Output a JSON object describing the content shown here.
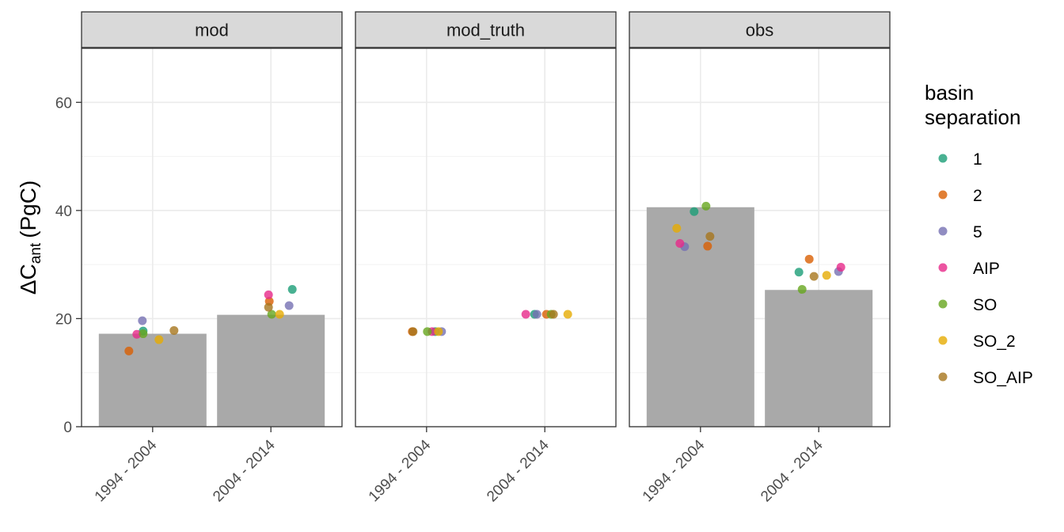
{
  "chart_data": {
    "type": "bar",
    "facets": [
      "mod",
      "mod_truth",
      "obs"
    ],
    "categories": [
      "1994 - 2004",
      "2004 - 2014"
    ],
    "ylabel": {
      "symbol": "ΔC",
      "subscript": "ant",
      "unit": "(PgC)"
    },
    "ylim": [
      0,
      70
    ],
    "yticks": [
      "0",
      "20",
      "40",
      "60"
    ],
    "bar_color": "#a9a9a9",
    "bars": {
      "mod": [
        17.2,
        20.7
      ],
      "mod_truth": [
        0,
        0
      ],
      "obs": [
        40.6,
        25.3
      ]
    },
    "legend": {
      "title": [
        "basin",
        "separation"
      ],
      "entries": [
        {
          "label": "1",
          "color": "#1b9e77"
        },
        {
          "label": "2",
          "color": "#d95f02"
        },
        {
          "label": "5",
          "color": "#7570b3"
        },
        {
          "label": "AIP",
          "color": "#e7298a"
        },
        {
          "label": "SO",
          "color": "#66a61e"
        },
        {
          "label": "SO_2",
          "color": "#e6ab02"
        },
        {
          "label": "SO_AIP",
          "color": "#a6761d"
        }
      ]
    },
    "points": [
      {
        "facet": "mod",
        "period": "1994 - 2004",
        "group": "1",
        "value": 17.7
      },
      {
        "facet": "mod",
        "period": "1994 - 2004",
        "group": "2",
        "value": 14.0
      },
      {
        "facet": "mod",
        "period": "1994 - 2004",
        "group": "5",
        "value": 19.6
      },
      {
        "facet": "mod",
        "period": "1994 - 2004",
        "group": "AIP",
        "value": 17.1
      },
      {
        "facet": "mod",
        "period": "1994 - 2004",
        "group": "SO",
        "value": 17.2
      },
      {
        "facet": "mod",
        "period": "1994 - 2004",
        "group": "SO_2",
        "value": 16.1
      },
      {
        "facet": "mod",
        "period": "1994 - 2004",
        "group": "SO_AIP",
        "value": 17.8
      },
      {
        "facet": "mod",
        "period": "2004 - 2014",
        "group": "1",
        "value": 25.4
      },
      {
        "facet": "mod",
        "period": "2004 - 2014",
        "group": "2",
        "value": 23.2
      },
      {
        "facet": "mod",
        "period": "2004 - 2014",
        "group": "5",
        "value": 22.4
      },
      {
        "facet": "mod",
        "period": "2004 - 2014",
        "group": "AIP",
        "value": 24.4
      },
      {
        "facet": "mod",
        "period": "2004 - 2014",
        "group": "SO",
        "value": 20.8
      },
      {
        "facet": "mod",
        "period": "2004 - 2014",
        "group": "SO_2",
        "value": 20.8
      },
      {
        "facet": "mod",
        "period": "2004 - 2014",
        "group": "SO_AIP",
        "value": 22.1
      },
      {
        "facet": "mod_truth",
        "period": "1994 - 2004",
        "group": "1",
        "value": 17.6
      },
      {
        "facet": "mod_truth",
        "period": "1994 - 2004",
        "group": "2",
        "value": 17.6
      },
      {
        "facet": "mod_truth",
        "period": "1994 - 2004",
        "group": "5",
        "value": 17.6
      },
      {
        "facet": "mod_truth",
        "period": "1994 - 2004",
        "group": "AIP",
        "value": 17.6
      },
      {
        "facet": "mod_truth",
        "period": "1994 - 2004",
        "group": "SO",
        "value": 17.6
      },
      {
        "facet": "mod_truth",
        "period": "1994 - 2004",
        "group": "SO_2",
        "value": 17.6
      },
      {
        "facet": "mod_truth",
        "period": "1994 - 2004",
        "group": "SO_AIP",
        "value": 17.6
      },
      {
        "facet": "mod_truth",
        "period": "2004 - 2014",
        "group": "1",
        "value": 20.8
      },
      {
        "facet": "mod_truth",
        "period": "2004 - 2014",
        "group": "2",
        "value": 20.8
      },
      {
        "facet": "mod_truth",
        "period": "2004 - 2014",
        "group": "5",
        "value": 20.8
      },
      {
        "facet": "mod_truth",
        "period": "2004 - 2014",
        "group": "AIP",
        "value": 20.8
      },
      {
        "facet": "mod_truth",
        "period": "2004 - 2014",
        "group": "SO",
        "value": 20.8
      },
      {
        "facet": "mod_truth",
        "period": "2004 - 2014",
        "group": "SO_2",
        "value": 20.8
      },
      {
        "facet": "mod_truth",
        "period": "2004 - 2014",
        "group": "SO_AIP",
        "value": 20.8
      },
      {
        "facet": "obs",
        "period": "1994 - 2004",
        "group": "1",
        "value": 39.8
      },
      {
        "facet": "obs",
        "period": "1994 - 2004",
        "group": "2",
        "value": 33.4
      },
      {
        "facet": "obs",
        "period": "1994 - 2004",
        "group": "5",
        "value": 33.3
      },
      {
        "facet": "obs",
        "period": "1994 - 2004",
        "group": "AIP",
        "value": 33.9
      },
      {
        "facet": "obs",
        "period": "1994 - 2004",
        "group": "SO",
        "value": 40.8
      },
      {
        "facet": "obs",
        "period": "1994 - 2004",
        "group": "SO_2",
        "value": 36.7
      },
      {
        "facet": "obs",
        "period": "1994 - 2004",
        "group": "SO_AIP",
        "value": 35.2
      },
      {
        "facet": "obs",
        "period": "2004 - 2014",
        "group": "1",
        "value": 28.6
      },
      {
        "facet": "obs",
        "period": "2004 - 2014",
        "group": "2",
        "value": 31.0
      },
      {
        "facet": "obs",
        "period": "2004 - 2014",
        "group": "5",
        "value": 28.7
      },
      {
        "facet": "obs",
        "period": "2004 - 2014",
        "group": "AIP",
        "value": 29.5
      },
      {
        "facet": "obs",
        "period": "2004 - 2014",
        "group": "SO",
        "value": 25.4
      },
      {
        "facet": "obs",
        "period": "2004 - 2014",
        "group": "SO_2",
        "value": 28.0
      },
      {
        "facet": "obs",
        "period": "2004 - 2014",
        "group": "SO_AIP",
        "value": 27.8
      }
    ]
  }
}
